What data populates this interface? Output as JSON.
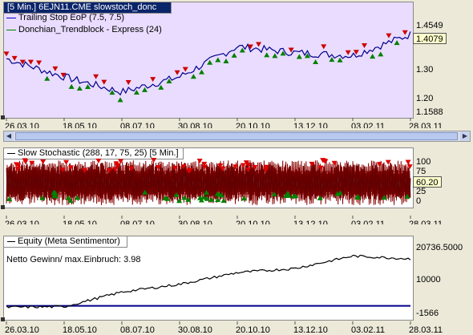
{
  "x_tick_labels": [
    "26.03.10",
    "18.05.10",
    "08.07.10",
    "30.08.10",
    "20.10.10",
    "13.12.10",
    "03.02.11",
    "28.03.11"
  ],
  "pane1": {
    "title": "[5 Min.] 6EJN11.CME slowstoch_donc",
    "legend": [
      {
        "label": "Trailing Stop EoP  (7.5, 7.5)",
        "color": "#0000cc"
      },
      {
        "label": "Donchian_Trendblock - Express  (24)",
        "color": "#008000"
      }
    ],
    "y_ticks": [
      "1.4549",
      "1.30",
      "1.20",
      "1.1588"
    ],
    "last_value": "1.4079"
  },
  "pane2": {
    "title": "Slow Stochastic  (288, 17, 75, 25) [5 Min.]",
    "y_ticks": [
      "100",
      "75",
      "50",
      "25",
      "0"
    ],
    "last_value": "60.20"
  },
  "pane3": {
    "title": "Equity (Meta Sentimentor)",
    "annotation": "Netto Gewinn/ max.Einbruch: 3.98",
    "y_ticks": [
      "20736.5000",
      "10000",
      "-1566"
    ],
    "line_color": "#000000",
    "baseline_color": "#00008b"
  },
  "chart_data": [
    {
      "type": "line",
      "x": [
        "26.03.10",
        "18.05.10",
        "08.07.10",
        "30.08.10",
        "20.10.10",
        "13.12.10",
        "03.02.11",
        "28.03.11"
      ],
      "series": [
        {
          "name": "6EJN11.CME",
          "values": [
            1.33,
            1.27,
            1.22,
            1.27,
            1.37,
            1.35,
            1.34,
            1.41
          ]
        }
      ],
      "ylim": [
        1.1588,
        1.4549
      ]
    },
    {
      "type": "line",
      "x": [
        "26.03.10",
        "28.03.11"
      ],
      "series": [
        {
          "name": "Slow Stochastic",
          "values": [
            50,
            60.2
          ]
        }
      ],
      "ylim": [
        0,
        100
      ]
    },
    {
      "type": "line",
      "x": [
        "26.03.10",
        "18.05.10",
        "08.07.10",
        "30.08.10",
        "20.10.10",
        "13.12.10",
        "03.02.11",
        "28.03.11"
      ],
      "series": [
        {
          "name": "Equity (Meta Sentimentor)",
          "values": [
            -500,
            -300,
            5000,
            7800,
            12000,
            13500,
            18000,
            17000
          ]
        }
      ],
      "ylim": [
        -1566,
        20736.5
      ]
    }
  ]
}
